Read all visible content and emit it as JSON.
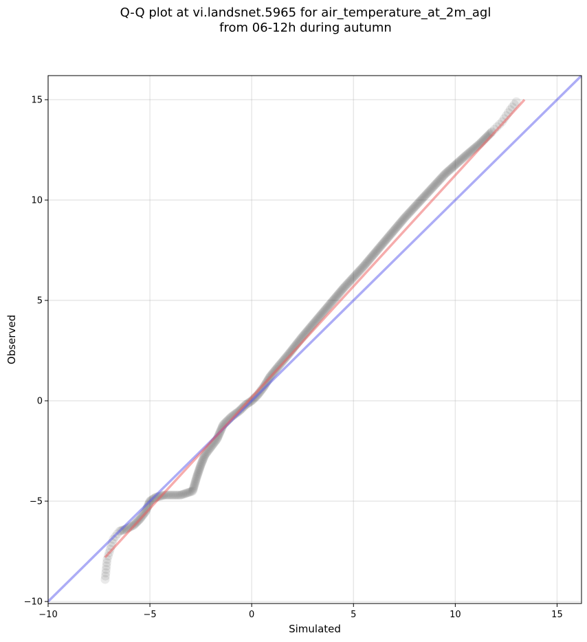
{
  "title_line1": "Q-Q plot at vi.landsnet.5965 for air_temperature_at_2m_agl",
  "title_line2": "from 06-12h during autumn",
  "chart_data": {
    "type": "scatter",
    "title": "Q-Q plot at vi.landsnet.5965 for air_temperature_at_2m_agl\nfrom 06-12h during autumn",
    "xlabel": "Simulated",
    "ylabel": "Observed",
    "xlim": [
      -10,
      16.2
    ],
    "ylim": [
      -10.1,
      16.2
    ],
    "xticks": [
      -10,
      -5,
      0,
      5,
      10,
      15
    ],
    "yticks": [
      -10,
      -5,
      0,
      5,
      10,
      15
    ],
    "xtick_labels": [
      "−10",
      "−5",
      "0",
      "5",
      "10",
      "15"
    ],
    "ytick_labels": [
      "−10",
      "−5",
      "0",
      "5",
      "10",
      "15"
    ],
    "grid": true,
    "colors": {
      "points": "#303030",
      "identity_line": "#5a5aee",
      "fit_line": "#ee5a5a"
    },
    "identity_line": {
      "x": [
        -10,
        16.2
      ],
      "y": [
        -10,
        16.2
      ]
    },
    "fit_line": {
      "x": [
        -7.2,
        13.4
      ],
      "y": [
        -7.8,
        15.0
      ]
    },
    "quantile_curve": {
      "x": [
        -7.2,
        -7.1,
        -6.8,
        -6.5,
        -6.2,
        -5.8,
        -5.5,
        -5.2,
        -5.0,
        -4.7,
        -4.3,
        -3.9,
        -3.5,
        -3.2,
        -2.9,
        -2.7,
        -2.5,
        -2.3,
        -2.0,
        -1.7,
        -1.4,
        -1.0,
        -0.6,
        -0.3,
        0.0,
        0.3,
        0.6,
        0.9,
        1.3,
        1.8,
        2.5,
        3.5,
        4.5,
        5.5,
        6.5,
        7.5,
        8.5,
        9.5,
        10.5,
        11.2,
        11.8,
        12.3,
        12.7,
        13.0
      ],
      "y": [
        -8.9,
        -7.9,
        -6.9,
        -6.5,
        -6.4,
        -6.2,
        -5.9,
        -5.5,
        -5.0,
        -4.8,
        -4.7,
        -4.7,
        -4.7,
        -4.6,
        -4.5,
        -3.8,
        -3.2,
        -2.7,
        -2.3,
        -1.9,
        -1.2,
        -0.8,
        -0.5,
        -0.2,
        0.0,
        0.3,
        0.7,
        1.2,
        1.7,
        2.3,
        3.2,
        4.4,
        5.6,
        6.7,
        7.9,
        9.1,
        10.2,
        11.3,
        12.2,
        12.8,
        13.4,
        13.9,
        14.5,
        14.9
      ]
    }
  }
}
